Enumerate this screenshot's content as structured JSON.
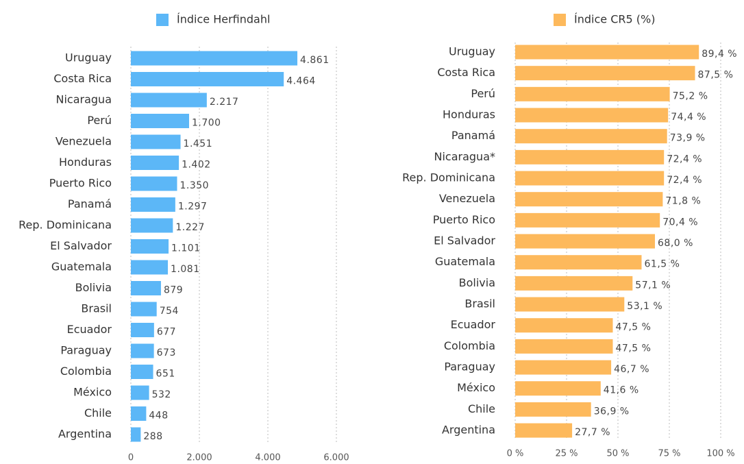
{
  "chart_data": [
    {
      "type": "bar",
      "orientation": "horizontal",
      "categories": [
        "Uruguay",
        "Costa Rica",
        "Nicaragua",
        "Perú",
        "Venezuela",
        "Honduras",
        "Puerto Rico",
        "Panamá",
        "Rep. Dominicana",
        "El Salvador",
        "Guatemala",
        "Bolivia",
        "Brasil",
        "Ecuador",
        "Paraguay",
        "Colombia",
        "México",
        "Chile",
        "Argentina"
      ],
      "series": [
        {
          "name": "Índice Herfindahl",
          "color": "#5cb7f7",
          "values": [
            4861,
            4464,
            2217,
            1700,
            1451,
            1402,
            1350,
            1297,
            1227,
            1101,
            1081,
            879,
            754,
            677,
            673,
            651,
            532,
            448,
            288
          ],
          "value_labels": [
            "4.861",
            "4.464",
            "2.217",
            "1.700",
            "1.451",
            "1.402",
            "1.350",
            "1.297",
            "1.227",
            "1.101",
            "1.081",
            "879",
            "754",
            "677",
            "673",
            "651",
            "532",
            "448",
            "288"
          ]
        }
      ],
      "xlim": [
        0,
        6000
      ],
      "xticks": [
        0,
        {
          "value": 2000,
          "label": "2.000"
        },
        {
          "value": 4000,
          "label": "4.000"
        },
        {
          "value": 6000,
          "label": "6.000"
        }
      ],
      "grid": true,
      "legend": "top"
    },
    {
      "type": "bar",
      "orientation": "horizontal",
      "categories": [
        "Uruguay",
        "Costa Rica",
        "Perú",
        "Honduras",
        "Panamá",
        "Nicaragua*",
        "Rep. Dominicana",
        "Venezuela",
        "Puerto Rico",
        "El Salvador",
        "Guatemala",
        "Bolivia",
        "Brasil",
        "Ecuador",
        "Colombia",
        "Paraguay",
        "México",
        "Chile",
        "Argentina"
      ],
      "series": [
        {
          "name": "Índice CR5 (%)",
          "color": "#fdb95c",
          "values": [
            89.4,
            87.5,
            75.2,
            74.4,
            73.9,
            72.4,
            72.4,
            71.8,
            70.4,
            68.0,
            61.5,
            57.1,
            53.1,
            47.5,
            47.5,
            46.7,
            41.6,
            36.9,
            27.7
          ],
          "value_labels": [
            "89,4 %",
            "87,5 %",
            "75,2 %",
            "74,4 %",
            "73,9 %",
            "72,4 %",
            "72,4 %",
            "71,8 %",
            "70,4 %",
            "68,0 %",
            "61,5 %",
            "57,1 %",
            "53,1 %",
            "47,5 %",
            "47,5 %",
            "46,7 %",
            "41,6 %",
            "36,9 %",
            "27,7 %"
          ]
        }
      ],
      "xlim": [
        0,
        100
      ],
      "xticks": [
        {
          "value": 0,
          "label": "0 %"
        },
        {
          "value": 25,
          "label": "25 %"
        },
        {
          "value": 50,
          "label": "50 %"
        },
        {
          "value": 75,
          "label": "75 %"
        },
        {
          "value": 100,
          "label": "100 %"
        }
      ],
      "grid": true,
      "legend": "top"
    }
  ]
}
